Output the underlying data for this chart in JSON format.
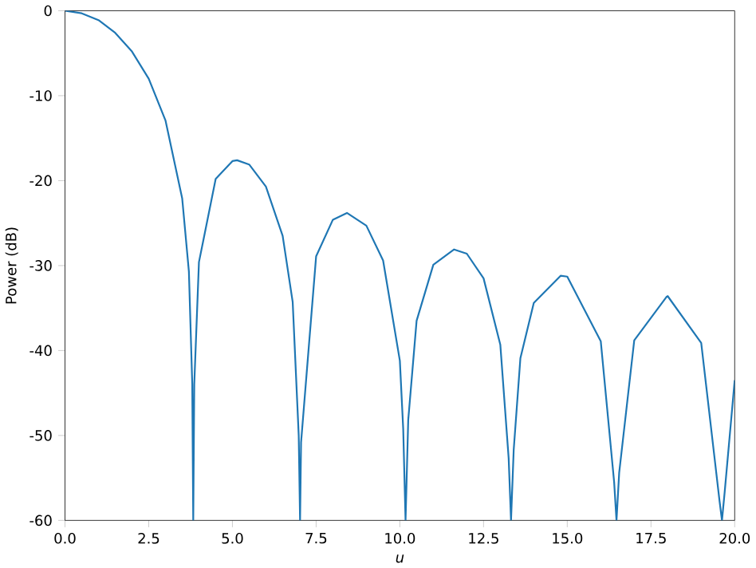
{
  "chart_data": {
    "type": "line",
    "xlabel": "u",
    "ylabel": "Power (dB)",
    "xlim": [
      0,
      20
    ],
    "ylim": [
      -60,
      0
    ],
    "xticks": [
      {
        "value": 0,
        "label": "0.0"
      },
      {
        "value": 2.5,
        "label": "2.5"
      },
      {
        "value": 5,
        "label": "5.0"
      },
      {
        "value": 7.5,
        "label": "7.5"
      },
      {
        "value": 10,
        "label": "10.0"
      },
      {
        "value": 12.5,
        "label": "12.5"
      },
      {
        "value": 15,
        "label": "15.0"
      },
      {
        "value": 17.5,
        "label": "17.5"
      },
      {
        "value": 20,
        "label": "20.0"
      }
    ],
    "yticks": [
      0,
      -10,
      -20,
      -30,
      -40,
      -50,
      -60
    ],
    "grid": false,
    "marker": "none",
    "line_style": "solid",
    "series": [
      {
        "color": "#1f77b4",
        "x": [
          0,
          0.5,
          1,
          1.5,
          2,
          2.5,
          3,
          3.5,
          3.7,
          3.8,
          3.83,
          3.86,
          4,
          4.5,
          5,
          5.14,
          5.5,
          6,
          6.5,
          6.8,
          6.98,
          7.02,
          7.05,
          7.5,
          8,
          8.42,
          9,
          9.5,
          10,
          10.1,
          10.17,
          10.25,
          10.5,
          11,
          11.62,
          12,
          12.5,
          13,
          13.25,
          13.32,
          13.4,
          13.6,
          14,
          14.8,
          15,
          16,
          16.4,
          16.47,
          16.55,
          17,
          17.96,
          18,
          19,
          19.55,
          19.62,
          19.7,
          20
        ],
        "values": [
          0,
          -0.3,
          -1.1,
          -2.6,
          -4.8,
          -8,
          -12.9,
          -22.1,
          -30.7,
          -43.9,
          -60,
          -44,
          -29.6,
          -19.8,
          -17.7,
          -17.6,
          -18.1,
          -20.7,
          -26.5,
          -34.3,
          -50,
          -60,
          -50.8,
          -28.9,
          -24.6,
          -23.8,
          -25.3,
          -29.4,
          -41.2,
          -49.2,
          -60,
          -48.2,
          -36.5,
          -29.9,
          -28.1,
          -28.6,
          -31.5,
          -39.3,
          -52.7,
          -60,
          -51.7,
          -40.9,
          -34.4,
          -31.2,
          -31.3,
          -38.9,
          -55.5,
          -60,
          -54.4,
          -38.8,
          -33.7,
          -33.6,
          -39.1,
          -57.8,
          -60,
          -56.7,
          -43.5
        ]
      }
    ]
  }
}
